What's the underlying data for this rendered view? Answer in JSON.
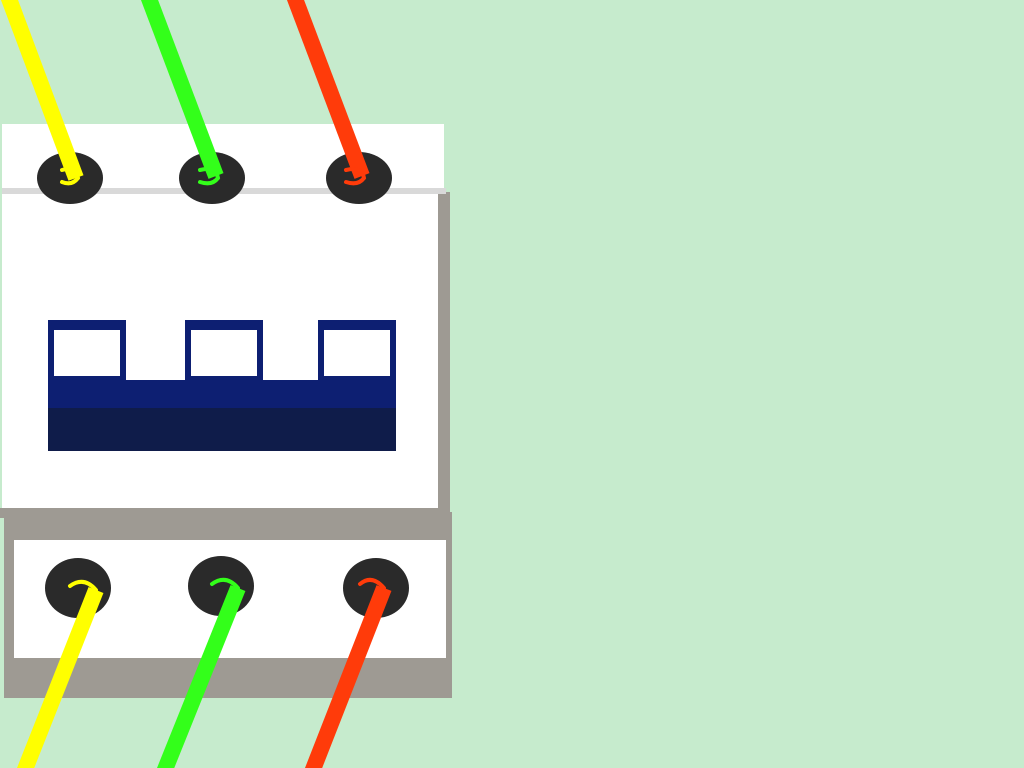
{
  "background_color": "#c6ebcd",
  "breaker": {
    "poles": 3,
    "body_color": "#ffffff",
    "shadow_color": "#9e9a93",
    "terminal_color": "#2a2a2a",
    "toggle_color": "#0d1f72",
    "toggle_dark_color": "#0f1c4a",
    "toggle_state": "on"
  },
  "wires": [
    {
      "name": "wire-yellow",
      "color": "#ffff00"
    },
    {
      "name": "wire-green",
      "color": "#33ff1a"
    },
    {
      "name": "wire-red",
      "color": "#ff3b0a"
    }
  ]
}
